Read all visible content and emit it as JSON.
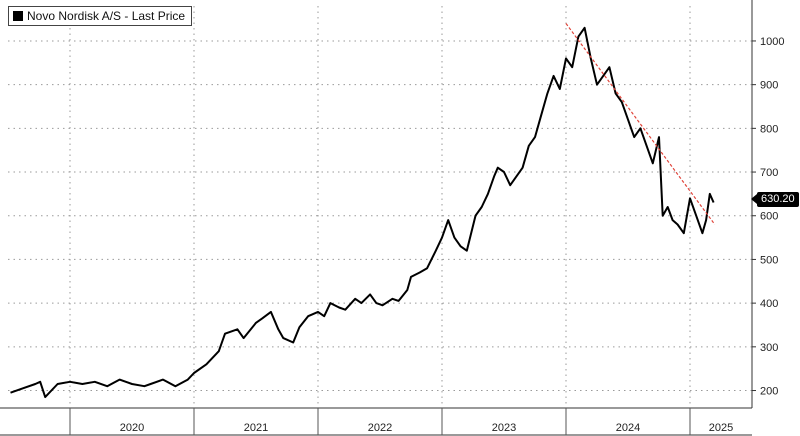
{
  "legend": {
    "label": "Novo Nordisk A/S - Last Price",
    "swatch_color": "#000000"
  },
  "last_price_label": "630.20",
  "chart_data": {
    "type": "line",
    "title": "",
    "xlabel": "",
    "ylabel": "",
    "ylim": [
      160,
      1080
    ],
    "y_ticks": [
      200,
      300,
      400,
      500,
      600,
      700,
      800,
      900,
      1000
    ],
    "x_tick_labels": [
      "2020",
      "2021",
      "2022",
      "2023",
      "2024",
      "2025"
    ],
    "x_range": [
      2019.5,
      2025.5
    ],
    "grid": true,
    "legend_position": "top-left",
    "series": [
      {
        "name": "Novo Nordisk A/S - Last Price",
        "color": "#000000",
        "x": [
          2019.52,
          2019.62,
          2019.72,
          2019.76,
          2019.8,
          2019.9,
          2020.0,
          2020.1,
          2020.2,
          2020.3,
          2020.4,
          2020.5,
          2020.6,
          2020.65,
          2020.75,
          2020.85,
          2020.95,
          2021.0,
          2021.1,
          2021.2,
          2021.25,
          2021.35,
          2021.4,
          2021.5,
          2021.55,
          2021.62,
          2021.68,
          2021.72,
          2021.8,
          2021.85,
          2021.92,
          2022.0,
          2022.05,
          2022.1,
          2022.17,
          2022.22,
          2022.3,
          2022.35,
          2022.42,
          2022.47,
          2022.52,
          2022.6,
          2022.65,
          2022.72,
          2022.75,
          2022.82,
          2022.88,
          2022.95,
          2023.0,
          2023.05,
          2023.1,
          2023.15,
          2023.2,
          2023.27,
          2023.32,
          2023.37,
          2023.42,
          2023.45,
          2023.5,
          2023.55,
          2023.6,
          2023.65,
          2023.7,
          2023.75,
          2023.8,
          2023.85,
          2023.9,
          2023.95,
          2024.0,
          2024.05,
          2024.1,
          2024.15,
          2024.2,
          2024.25,
          2024.3,
          2024.35,
          2024.4,
          2024.45,
          2024.5,
          2024.55,
          2024.6,
          2024.65,
          2024.7,
          2024.75,
          2024.78,
          2024.82,
          2024.86,
          2024.9,
          2024.95,
          2025.0,
          2025.05,
          2025.1,
          2025.13,
          2025.16,
          2025.19
        ],
        "y": [
          195,
          205,
          215,
          220,
          185,
          215,
          220,
          215,
          220,
          210,
          225,
          215,
          210,
          215,
          225,
          210,
          225,
          240,
          260,
          290,
          330,
          340,
          320,
          355,
          365,
          380,
          340,
          320,
          310,
          345,
          370,
          380,
          370,
          400,
          390,
          385,
          410,
          400,
          420,
          400,
          395,
          410,
          405,
          430,
          460,
          470,
          480,
          520,
          550,
          590,
          550,
          530,
          520,
          600,
          620,
          650,
          690,
          710,
          700,
          670,
          690,
          710,
          760,
          780,
          830,
          880,
          920,
          890,
          960,
          940,
          1010,
          1030,
          960,
          900,
          920,
          940,
          880,
          860,
          820,
          780,
          800,
          760,
          720,
          780,
          600,
          620,
          590,
          580,
          560,
          640,
          600,
          560,
          590,
          650,
          630.2
        ]
      },
      {
        "name": "",
        "color": "#e0443a",
        "style": "dashed",
        "x": [
          2024.0,
          2025.2
        ],
        "y": [
          1040,
          580
        ]
      }
    ]
  }
}
